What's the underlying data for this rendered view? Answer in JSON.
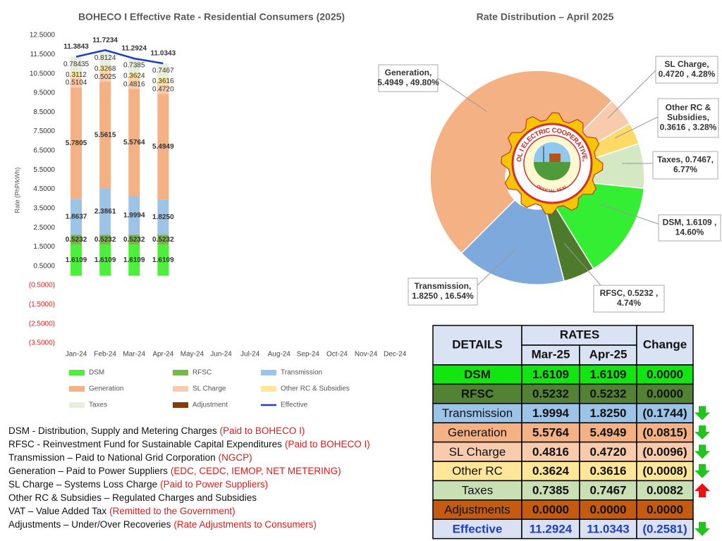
{
  "chart_data": [
    {
      "type": "bar",
      "title": "BOHECO I Effective Rate - Residential Consumers (2025)",
      "ylabel": "Rate (PhP/kWh)",
      "stacked": true,
      "grid": false,
      "legend": "bottom",
      "categories": [
        "Jan-24",
        "Feb-24",
        "Mar-24",
        "Apr-24",
        "May-24",
        "Jun-24",
        "Jul-24",
        "Aug-24",
        "Sep-24",
        "Oct-24",
        "Nov-24",
        "Dec-24"
      ],
      "ylim": [
        -3.5,
        12.5
      ],
      "yticks": [
        {
          "value": -3.5,
          "label": "(3.5000)"
        },
        {
          "value": -2.5,
          "label": "(2.5000)"
        },
        {
          "value": -1.5,
          "label": "(1.5000)"
        },
        {
          "value": -0.5,
          "label": "(0.5000)"
        },
        {
          "value": 0.5,
          "label": "0.5000"
        },
        {
          "value": 1.5,
          "label": "1.5000"
        },
        {
          "value": 2.5,
          "label": "2.5000"
        },
        {
          "value": 3.5,
          "label": "3.5000"
        },
        {
          "value": 4.5,
          "label": "4.5000"
        },
        {
          "value": 5.5,
          "label": "5.5000"
        },
        {
          "value": 6.5,
          "label": "6.5000"
        },
        {
          "value": 7.5,
          "label": "7.5000"
        },
        {
          "value": 8.5,
          "label": "8.5000"
        },
        {
          "value": 9.5,
          "label": "9.5000"
        },
        {
          "value": 10.5,
          "label": "10.5000"
        },
        {
          "value": 11.5,
          "label": "11.5000"
        },
        {
          "value": 12.5,
          "label": "12.5000"
        }
      ],
      "series": [
        {
          "name": "DSM",
          "color": "#4cf03a",
          "values": [
            1.6109,
            1.6109,
            1.6109,
            1.6109,
            null,
            null,
            null,
            null,
            null,
            null,
            null,
            null
          ]
        },
        {
          "name": "RFSC",
          "color": "#7ab648",
          "values": [
            0.5232,
            0.5232,
            0.5232,
            0.5232,
            null,
            null,
            null,
            null,
            null,
            null,
            null,
            null
          ]
        },
        {
          "name": "Transmission",
          "color": "#9dc3e6",
          "values": [
            1.8637,
            2.3861,
            1.9994,
            1.825,
            null,
            null,
            null,
            null,
            null,
            null,
            null,
            null
          ],
          "value_labels": [
            "1.8637",
            "2.3861",
            "1.9994",
            "1.8250",
            null,
            null,
            null,
            null,
            null,
            null,
            null,
            null
          ]
        },
        {
          "name": "Generation",
          "color": "#f4b183",
          "values": [
            5.7805,
            5.5615,
            5.5764,
            5.4949,
            null,
            null,
            null,
            null,
            null,
            null,
            null,
            null
          ]
        },
        {
          "name": "SL Charge",
          "color": "#f8cbad",
          "values": [
            0.5104,
            0.5025,
            0.4816,
            0.472,
            null,
            null,
            null,
            null,
            null,
            null,
            null,
            null
          ],
          "value_labels": [
            "0.5104",
            "0.5025",
            "0.4816",
            "0.4720",
            null,
            null,
            null,
            null,
            null,
            null,
            null,
            null
          ]
        },
        {
          "name": "Other RC & Subsidies",
          "color": "#ffe699",
          "values": [
            0.3112,
            0.3268,
            0.3624,
            0.3616,
            null,
            null,
            null,
            null,
            null,
            null,
            null,
            null
          ]
        },
        {
          "name": "Taxes",
          "color": "#e7eedd",
          "values": [
            0.78435,
            0.8124,
            0.7385,
            0.7467,
            null,
            null,
            null,
            null,
            null,
            null,
            null,
            null
          ]
        },
        {
          "name": "Adjustment",
          "color": "#843c0c",
          "values": [
            null,
            null,
            null,
            null,
            null,
            null,
            null,
            null,
            null,
            null,
            null,
            null
          ]
        },
        {
          "name": "Effective",
          "color": "#1f3fbf",
          "type": "line",
          "values": [
            11.3843,
            11.7234,
            11.2924,
            11.0343,
            null,
            null,
            null,
            null,
            null,
            null,
            null,
            null
          ]
        }
      ]
    },
    {
      "type": "pie",
      "title": "Rate Distribution – April 2025",
      "values": [
        5.4949,
        0.472,
        0.3616,
        0.7467,
        1.6109,
        0.5232,
        1.825
      ],
      "colors": [
        "#f4b183",
        "#f8cbad",
        "#ffd966",
        "#d5e8c4",
        "#33ee33",
        "#4e7a2c",
        "#7ea9dc"
      ],
      "value_labels": [
        [
          "Generation,",
          "5.4949 , 49.80%"
        ],
        [
          "SL Charge,",
          "0.4720 , 4.28%"
        ],
        [
          "Other RC &",
          "Subsidies,",
          "0.3616 , 3.28%"
        ],
        [
          "Taxes, 0.7467,",
          "6.77%"
        ],
        [
          "DSM, 1.6109 ,",
          "14.60%"
        ],
        [
          "RFSC, 0.5232 ,",
          "4.74%"
        ],
        [
          "Transmission,",
          "1.8250 , 16.54%"
        ]
      ],
      "logo": {
        "name": "BOHOL I ELECTRIC COOPERATIVE, INC.",
        "seal": "OFFICIAL SEAL"
      }
    }
  ],
  "table": {
    "header": [
      "DETAILS",
      "RATES",
      "Change"
    ],
    "subheader": [
      "Mar-25",
      "Apr-25"
    ],
    "rows": [
      [
        "DSM",
        "1.6109",
        "1.6109",
        "0.0000"
      ],
      [
        "RFSC",
        "0.5232",
        "0.5232",
        "0.0000"
      ],
      [
        "Transmission",
        "1.9994",
        "1.8250",
        "(0.1744)"
      ],
      [
        "Generation",
        "5.5764",
        "5.4949",
        "(0.0815)"
      ],
      [
        "SL Charge",
        "0.4816",
        "0.4720",
        "(0.0096)"
      ],
      [
        "Other RC",
        "0.3624",
        "0.3616",
        "(0.0008)"
      ],
      [
        "Taxes",
        "0.7385",
        "0.7467",
        "0.0082"
      ],
      [
        "Adjustments",
        "0.0000",
        "0.0000",
        "0.0000"
      ],
      [
        "Effective",
        "11.2924",
        "11.0343",
        "(0.2581)"
      ]
    ]
  },
  "notes": [
    {
      "text": "DSM - Distribution, Supply and Metering Charges",
      "highlight": "(Paid to BOHECO I)"
    },
    {
      "text": "RFSC - Reinvestment Fund for Sustainable Capital Expenditures",
      "highlight": "(Paid to BOHECO I)"
    },
    {
      "text": "Transmission – Paid to National Grid Corporation",
      "highlight": "(NGCP)"
    },
    {
      "text": "Generation – Paid to Power Suppliers",
      "highlight": "(EDC, CEDC, IEMOP, NET METERING)"
    },
    {
      "text": "SL Charge – Systems Loss Charge",
      "highlight": "(Paid to Power Suppliers)"
    },
    {
      "text": "Other RC & Subsidies – Regulated Charges and Subsidies"
    },
    {
      "text": "VAT – Value Added Tax",
      "highlight": "(Remitted to the Government)"
    },
    {
      "text": "Adjustments – Under/Over Recoveries",
      "highlight": "(Rate Adjustments to Consumers)"
    }
  ]
}
